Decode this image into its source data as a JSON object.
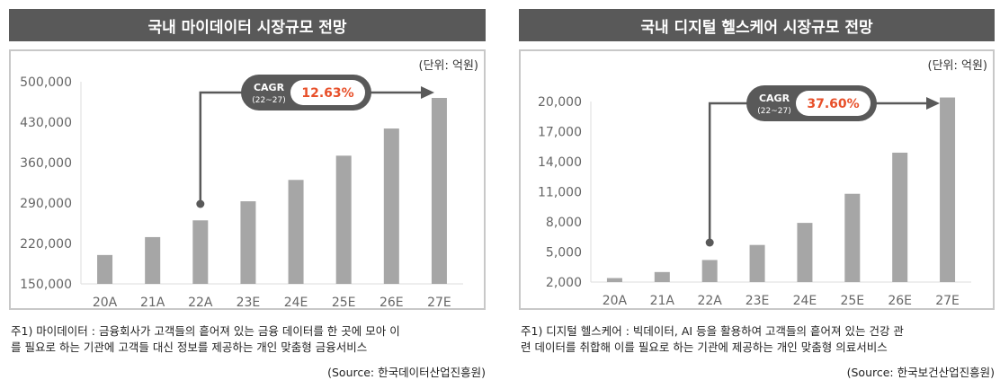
{
  "chart_data": [
    {
      "type": "bar",
      "title": "국내 마이데이터 시장규모 전망",
      "unit": "(단위: 억원)",
      "categories": [
        "20A",
        "21A",
        "22A",
        "23E",
        "24E",
        "25E",
        "26E",
        "27E"
      ],
      "values": [
        200000,
        231000,
        260000,
        293000,
        330000,
        372000,
        419000,
        472000
      ],
      "ylim": [
        150000,
        500000
      ],
      "yticks": [
        150000,
        220000,
        290000,
        360000,
        430000,
        500000
      ],
      "ytick_labels": [
        "150,000",
        "220,000",
        "290,000",
        "360,000",
        "430,000",
        "500,000"
      ],
      "annotation": {
        "label": "CAGR",
        "period": "(22~27)",
        "value": "12.63%"
      },
      "bar_color": "#a6a6a6",
      "grid": false,
      "footnote": [
        "주1) 마이데이터 : 금융회사가 고객들의 흩어져 있는 금융 데이터를 한 곳에 모아 이",
        "를 필요로 하는 기관에 고객들 대신 정보를 제공하는 개인 맞춤형 금융서비스"
      ],
      "source": "(Source: 한국데이터산업진흥원)"
    },
    {
      "type": "bar",
      "title": "국내 디지털 헬스케어 시장규모 전망",
      "unit": "(단위: 억원)",
      "categories": [
        "20A",
        "21A",
        "22A",
        "23E",
        "24E",
        "25E",
        "26E",
        "27E"
      ],
      "values": [
        2400,
        3000,
        4200,
        5700,
        7900,
        10800,
        14900,
        20400
      ],
      "ylim": [
        2000,
        20000
      ],
      "yticks": [
        2000,
        5000,
        8000,
        11000,
        14000,
        17000,
        20000
      ],
      "ytick_labels": [
        "2,000",
        "5,000",
        "8,000",
        "11,000",
        "14,000",
        "17,000",
        "20,000"
      ],
      "annotation": {
        "label": "CAGR",
        "period": "(22~27)",
        "value": "37.60%"
      },
      "bar_color": "#a6a6a6",
      "grid": false,
      "footnote": [
        "주1) 디지털 헬스케어 : 빅데이터, AI 등을 활용하여 고객들의 흩어져 있는 건강 관",
        "련 데이터를 취합해 이를 필요로 하는 기관에 제공하는 개인 맞춤형 의료서비스"
      ],
      "source": "(Source: 한국보건산업진흥원)"
    }
  ],
  "colors": {
    "title_bg": "#595959",
    "accent": "#e8502a",
    "callout": "#595959"
  }
}
